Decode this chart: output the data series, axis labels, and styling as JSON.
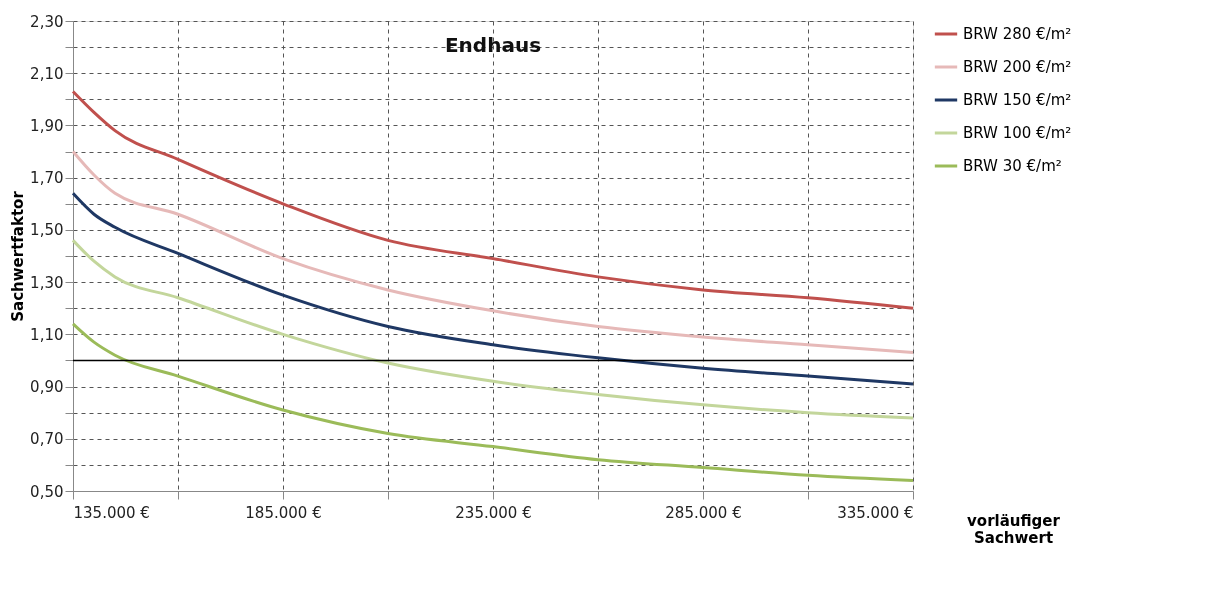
{
  "chart_data": {
    "type": "line",
    "title": "Endhaus",
    "xlabel": "vorläufiger Sachwert",
    "ylabel": "Sachwertfaktor",
    "x": [
      135000,
      140000,
      145000,
      160000,
      185000,
      210000,
      235000,
      260000,
      285000,
      310000,
      335000
    ],
    "series": [
      {
        "name": "BRW 280 €/m²",
        "color": "#c0504d",
        "values": [
          2.03,
          1.95,
          1.88,
          1.77,
          1.6,
          1.46,
          1.39,
          1.32,
          1.27,
          1.24,
          1.2
        ]
      },
      {
        "name": "BRW 200 €/m²",
        "color": "#e6b9b8",
        "values": [
          1.8,
          1.71,
          1.64,
          1.56,
          1.39,
          1.27,
          1.19,
          1.13,
          1.09,
          1.06,
          1.03
        ]
      },
      {
        "name": "BRW 150 €/m²",
        "color": "#1f3864",
        "values": [
          1.64,
          1.56,
          1.51,
          1.41,
          1.25,
          1.13,
          1.06,
          1.01,
          0.97,
          0.94,
          0.91
        ]
      },
      {
        "name": "BRW 100 €/m²",
        "color": "#c3d69b",
        "values": [
          1.46,
          1.38,
          1.32,
          1.24,
          1.1,
          0.99,
          0.92,
          0.87,
          0.83,
          0.8,
          0.78
        ]
      },
      {
        "name": "BRW 30 €/m²",
        "color": "#9bbb59",
        "values": [
          1.14,
          1.07,
          1.02,
          0.94,
          0.81,
          0.72,
          0.67,
          0.62,
          0.59,
          0.56,
          0.54
        ]
      }
    ],
    "xlim": [
      135000,
      335000
    ],
    "xticks": [
      {
        "value": 135000,
        "label": "135.000 €"
      },
      {
        "value": 160000,
        "label": null
      },
      {
        "value": 185000,
        "label": "185.000 €"
      },
      {
        "value": 210000,
        "label": null
      },
      {
        "value": 235000,
        "label": "235.000 €"
      },
      {
        "value": 260000,
        "label": null
      },
      {
        "value": 285000,
        "label": "285.000 €"
      },
      {
        "value": 310000,
        "label": null
      },
      {
        "value": 335000,
        "label": "335.000 €"
      }
    ],
    "ylim": [
      0.5,
      2.3
    ],
    "yticks": [
      {
        "value": 0.5,
        "label": "0,50"
      },
      {
        "value": 0.6,
        "label": null
      },
      {
        "value": 0.7,
        "label": "0,70"
      },
      {
        "value": 0.8,
        "label": null
      },
      {
        "value": 0.9,
        "label": "0,90"
      },
      {
        "value": 1.0,
        "label": null
      },
      {
        "value": 1.1,
        "label": "1,10"
      },
      {
        "value": 1.2,
        "label": null
      },
      {
        "value": 1.3,
        "label": "1,30"
      },
      {
        "value": 1.4,
        "label": null
      },
      {
        "value": 1.5,
        "label": "1,50"
      },
      {
        "value": 1.6,
        "label": null
      },
      {
        "value": 1.7,
        "label": "1,70"
      },
      {
        "value": 1.8,
        "label": null
      },
      {
        "value": 1.9,
        "label": "1,90"
      },
      {
        "value": 2.0,
        "label": null
      },
      {
        "value": 2.1,
        "label": "2,10"
      },
      {
        "value": 2.2,
        "label": null
      },
      {
        "value": 2.3,
        "label": "2,30"
      }
    ],
    "ref_lines": [
      {
        "axis": "y",
        "value": 1.0,
        "color": "#000000"
      }
    ],
    "grid": true,
    "legend": "right",
    "line_style": "solid"
  }
}
